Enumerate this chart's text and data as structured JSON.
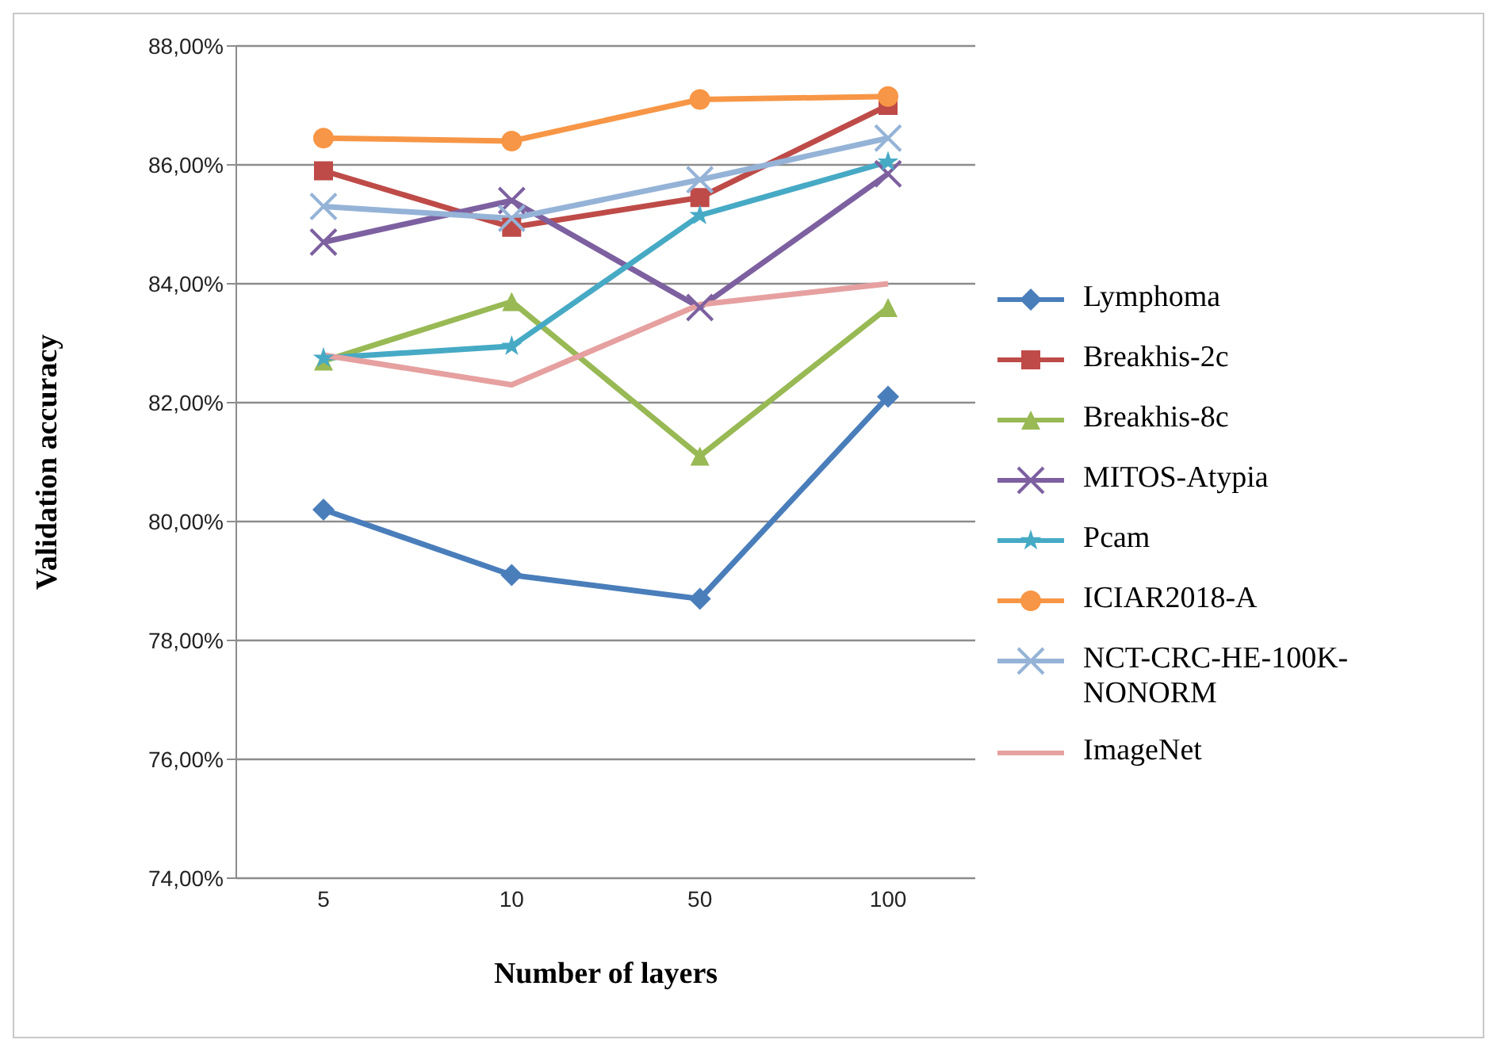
{
  "chart_data": {
    "type": "line",
    "xlabel": "Number of layers",
    "ylabel": "Validation accuracy",
    "categories": [
      "5",
      "10",
      "50",
      "100"
    ],
    "series": [
      {
        "name": "Lymphoma",
        "color": "#4a7ebb",
        "marker": "diamond",
        "values": [
          80.2,
          79.1,
          78.7,
          82.1
        ]
      },
      {
        "name": "Breakhis-2c",
        "color": "#be4b48",
        "marker": "square",
        "values": [
          85.9,
          84.95,
          85.45,
          87.0
        ]
      },
      {
        "name": "Breakhis-8c",
        "color": "#98b954",
        "marker": "triangle",
        "values": [
          82.7,
          83.7,
          81.1,
          83.6
        ]
      },
      {
        "name": "MITOS-Atypia",
        "color": "#7d60a0",
        "marker": "cross",
        "values": [
          84.7,
          85.4,
          83.6,
          85.85
        ]
      },
      {
        "name": "Pcam",
        "color": "#46aac5",
        "marker": "star",
        "values": [
          82.75,
          82.95,
          85.15,
          86.05
        ]
      },
      {
        "name": "ICIAR2018-A",
        "color": "#f79646",
        "marker": "circle",
        "values": [
          86.45,
          86.4,
          87.1,
          87.15
        ]
      },
      {
        "name": "NCT-CRC-HE-100K-NONORM",
        "color": "#95b3d7",
        "marker": "cross",
        "values": [
          85.3,
          85.1,
          85.75,
          86.45
        ]
      },
      {
        "name": "ImageNet",
        "color": "#e6a0a0",
        "marker": "none",
        "values": [
          82.8,
          82.3,
          83.65,
          84.0
        ]
      }
    ],
    "ylim": [
      74,
      88
    ],
    "yticks": [
      {
        "value": 74,
        "label": "74,00%"
      },
      {
        "value": 76,
        "label": "76,00%"
      },
      {
        "value": 78,
        "label": "78,00%"
      },
      {
        "value": 80,
        "label": "80,00%"
      },
      {
        "value": 82,
        "label": "82,00%"
      },
      {
        "value": 84,
        "label": "84,00%"
      },
      {
        "value": 86,
        "label": "86,00%"
      },
      {
        "value": 88,
        "label": "88,00%"
      }
    ],
    "grid": "y",
    "legend": "right",
    "line_style": "solid"
  }
}
